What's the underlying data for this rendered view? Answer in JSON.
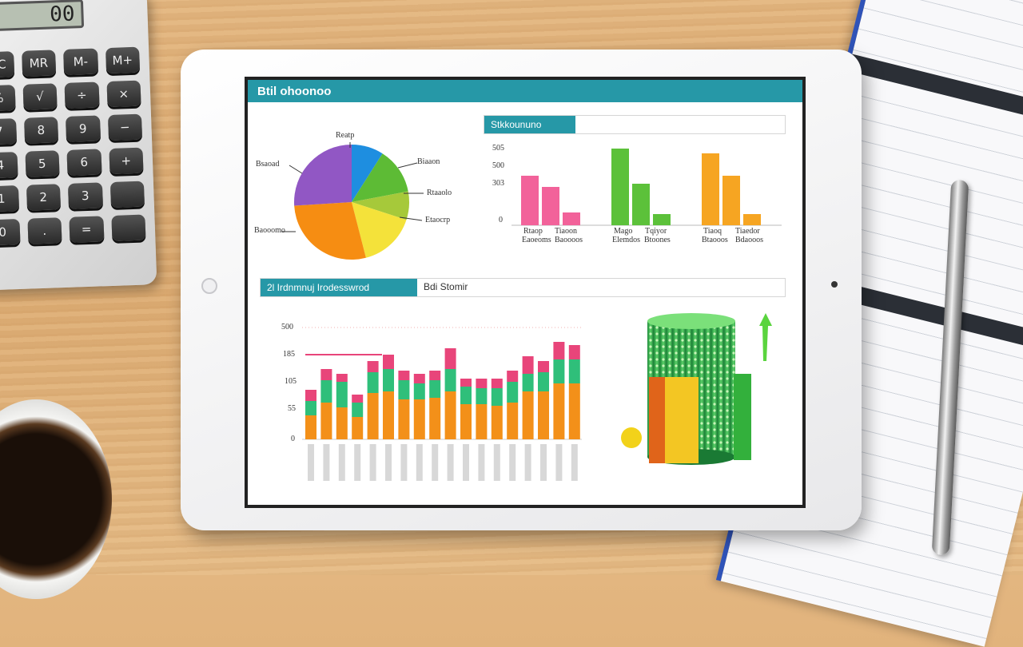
{
  "calculator": {
    "display": "00",
    "keys": [
      "MC",
      "MR",
      "M-",
      "M+",
      "%",
      "√",
      "÷",
      "×",
      "7",
      "8",
      "9",
      "−",
      "4",
      "5",
      "6",
      "+",
      "1",
      "2",
      "3",
      "",
      "0",
      ".",
      "=",
      " "
    ]
  },
  "dashboard": {
    "title": "Btil ohoonoo",
    "pie": {
      "labels": [
        "Reatp",
        "Bsaoad",
        "Biaaon",
        "Rtaaolo",
        "Etaocrp",
        "Baooomo"
      ],
      "colors": [
        "#1e8ee0",
        "#5dbb35",
        "#a6c93a",
        "#f4e23a",
        "#f68d12",
        "#9157c4"
      ]
    },
    "top_panel": {
      "tab": "Stkkoununo",
      "ticks": [
        "505",
        "500",
        "303",
        "0"
      ],
      "groups": [
        {
          "label1": "Rtaop",
          "label2": "Tiaoon",
          "sub1": "Eaoeoms",
          "sub2": "Baoooos",
          "color": "#f2629a"
        },
        {
          "label1": "Mago",
          "label2": "Tqiyor",
          "sub1": "Elemdos",
          "sub2": "Btoones",
          "color": "#5cc13a"
        },
        {
          "label1": "Tiaoq",
          "label2": "Tiaedor",
          "sub1": "Btaooos",
          "sub2": "Bdaooos",
          "color": "#f6a522"
        }
      ]
    },
    "bottom_panel": {
      "tab": "2l Irdnmnuj Irodesswrod",
      "rest": "Bdi Stomir",
      "ticks": [
        "500",
        "185",
        "105",
        "55",
        "0"
      ],
      "chart_data": {
        "type": "bar",
        "series": [
          {
            "name": "",
            "color": "#f39019"
          },
          {
            "name": "",
            "color": "#2fbf7a"
          },
          {
            "name": "",
            "color": "#e8457a"
          }
        ]
      }
    }
  }
}
